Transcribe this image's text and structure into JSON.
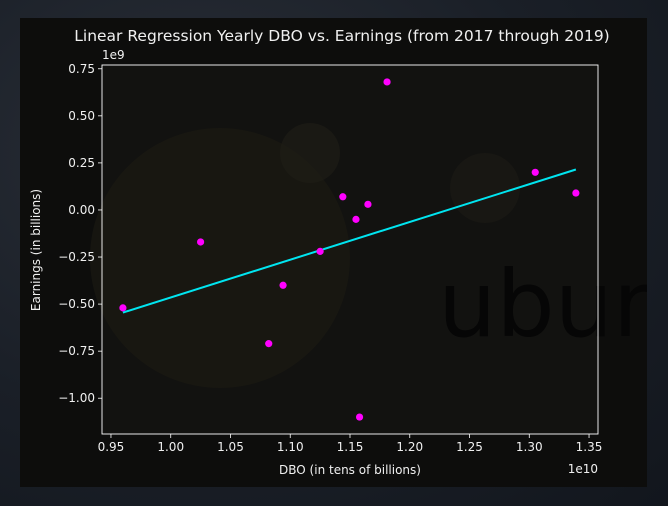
{
  "chart_data": {
    "type": "scatter",
    "title": "Linear Regression Yearly DBO vs. Earnings (from 2017 through 2019)",
    "xlabel": "DBO (in tens of billions)",
    "ylabel": "Earnings (in billions)",
    "x_offset_label": "1e10",
    "y_offset_label": "1e9",
    "xlim": [
      0.9425,
      1.3575
    ],
    "ylim": [
      -1.19,
      0.77
    ],
    "x_ticks": [
      "0.95",
      "1.00",
      "1.05",
      "1.10",
      "1.15",
      "1.20",
      "1.25",
      "1.30",
      "1.35"
    ],
    "y_ticks": [
      "-1.00",
      "-0.75",
      "-0.50",
      "-0.25",
      "0.00",
      "0.25",
      "0.50",
      "0.75"
    ],
    "grid": false,
    "background_watermark": "ubun",
    "series": [
      {
        "type": "scatter",
        "color": "#ff00ff",
        "points": [
          {
            "x": 0.96,
            "y": -0.52
          },
          {
            "x": 1.025,
            "y": -0.17
          },
          {
            "x": 1.082,
            "y": -0.71
          },
          {
            "x": 1.094,
            "y": -0.4
          },
          {
            "x": 1.125,
            "y": -0.22
          },
          {
            "x": 1.144,
            "y": 0.07
          },
          {
            "x": 1.155,
            "y": -0.05
          },
          {
            "x": 1.158,
            "y": -1.1
          },
          {
            "x": 1.165,
            "y": 0.03
          },
          {
            "x": 1.181,
            "y": 0.68
          },
          {
            "x": 1.305,
            "y": 0.2
          },
          {
            "x": 1.339,
            "y": 0.09
          }
        ]
      },
      {
        "type": "line",
        "color": "#00e5f0",
        "points": [
          {
            "x": 0.96,
            "y": -0.545
          },
          {
            "x": 1.339,
            "y": 0.215
          }
        ]
      }
    ]
  }
}
